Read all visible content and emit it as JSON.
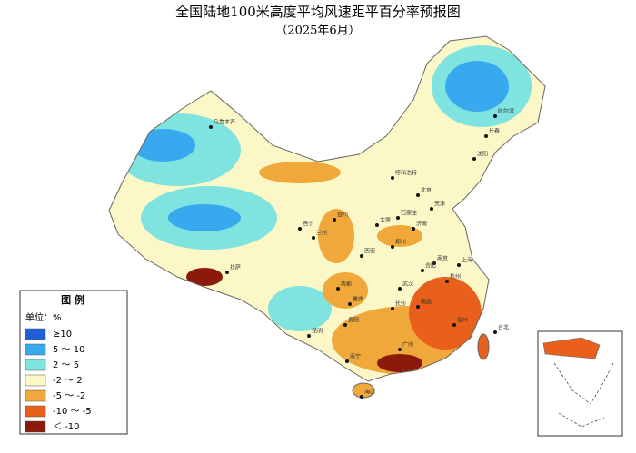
{
  "header": {
    "title": "全国陆地100米高度平均风速距平百分率预报图",
    "subtitle": "（2025年6月）"
  },
  "legend": {
    "title": "图 例",
    "unit": "单位：%",
    "items": [
      {
        "label": "≥10",
        "color": "#1f5fd6"
      },
      {
        "label": "5 ～ 10",
        "color": "#39a9ef"
      },
      {
        "label": "2 ～ 5",
        "color": "#7fe3e0"
      },
      {
        "label": "-2 ～ 2",
        "color": "#fbf7c6"
      },
      {
        "label": "-5 ～ -2",
        "color": "#f0a83a"
      },
      {
        "label": "-10 ～ -5",
        "color": "#e8601c"
      },
      {
        "label": "＜ -10",
        "color": "#8b1a0a"
      }
    ]
  },
  "cities": [
    "乌鲁木齐",
    "哈尔滨",
    "长春",
    "沈阳",
    "呼和浩特",
    "北京",
    "天津",
    "石家庄",
    "太原",
    "济南",
    "银川",
    "兰州",
    "西宁",
    "郑州",
    "西安",
    "南京",
    "合肥",
    "上海",
    "武汉",
    "成都",
    "重庆",
    "长沙",
    "南昌",
    "杭州",
    "福州",
    "贵阳",
    "昆明",
    "南宁",
    "广州",
    "台北",
    "海口",
    "拉萨"
  ]
}
